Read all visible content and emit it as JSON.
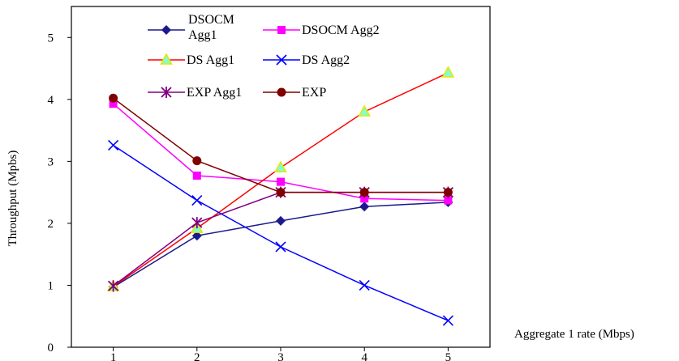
{
  "chart_data": {
    "type": "line",
    "title": "",
    "xlabel": "Aggregate 1 rate (Mbps)",
    "ylabel": "Throughput (Mpbs)",
    "x": [
      1,
      2,
      3,
      4,
      5
    ],
    "xlim": [
      0.5,
      5.5
    ],
    "ylim": [
      0,
      5.5
    ],
    "yticks": [
      0,
      1,
      2,
      3,
      4,
      5
    ],
    "grid": false,
    "legend_position": "top, inside plot",
    "series": [
      {
        "name": "DSOCM Agg1",
        "values": [
          0.97,
          1.8,
          2.04,
          2.27,
          2.34
        ],
        "color": "#1a1a8c",
        "marker": "diamond"
      },
      {
        "name": "DSOCM Agg2",
        "values": [
          3.93,
          2.77,
          2.67,
          2.4,
          2.37
        ],
        "color": "#ff00ff",
        "marker": "square"
      },
      {
        "name": "DS Agg1",
        "values": [
          0.98,
          1.92,
          2.9,
          3.8,
          4.43
        ],
        "color": "#ff0000",
        "marker": "triangle"
      },
      {
        "name": "DS Agg2",
        "values": [
          3.26,
          2.37,
          1.62,
          1.0,
          0.43
        ],
        "color": "#0000ff",
        "marker": "x"
      },
      {
        "name": "EXP Agg1",
        "values": [
          0.99,
          2.01,
          2.5,
          2.5,
          2.5
        ],
        "color": "#800080",
        "marker": "star"
      },
      {
        "name": "EXP",
        "values": [
          4.02,
          3.01,
          2.5,
          2.5,
          2.5
        ],
        "color": "#800000",
        "marker": "circle"
      }
    ]
  }
}
